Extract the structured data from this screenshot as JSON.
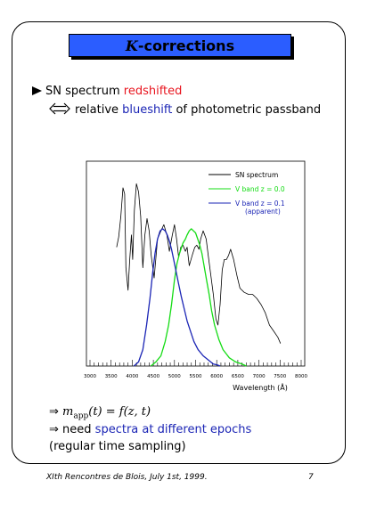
{
  "slide": {
    "title_symbol": "K",
    "title_rest": "-corrections",
    "line1_pre": "SN spectrum ",
    "line1_highlight": "redshifted",
    "line2_pre": "relative ",
    "line2_highlight": "blueshift",
    "line2_post": " of photometric passband",
    "result1_lhs": "m",
    "result1_sub": "app",
    "result1_lhs_args": "(t)",
    "result1_rhs": " = f(z, t)",
    "result2_pre": "need ",
    "result2_highlight": "spectra at different epochs",
    "result3": "(regular time sampling)",
    "footer_left": "XIth Rencontres de Blois, July 1st, 1999.",
    "page_number": "7",
    "colors": {
      "title_bg": "#2b5dff",
      "red": "#e8141e",
      "blue": "#1b25b5",
      "green": "#14dc14"
    }
  },
  "chart_data": {
    "type": "line",
    "xlabel": "Wavelength (Å)",
    "ylabel": "",
    "xlim": [
      3000,
      8000
    ],
    "ylim": [
      0,
      1
    ],
    "xticks": [
      "3000",
      "3500",
      "4000",
      "4500",
      "5000",
      "5500",
      "6000",
      "6500",
      "7000",
      "7500",
      "8000"
    ],
    "legend": [
      {
        "label": "SN spectrum",
        "color": "#000000"
      },
      {
        "label": "V band z = 0.0",
        "color": "#14dc14"
      },
      {
        "label": "V band z = 0.1",
        "color": "#1b25b5"
      },
      {
        "label": "(apparent)",
        "color": "#1b25b5"
      }
    ],
    "series": [
      {
        "name": "SN spectrum",
        "color": "#000000",
        "x": [
          3630,
          3680,
          3730,
          3780,
          3820,
          3850,
          3900,
          3940,
          3980,
          4010,
          4050,
          4100,
          4150,
          4200,
          4250,
          4300,
          4350,
          4400,
          4450,
          4520,
          4600,
          4680,
          4750,
          4820,
          4880,
          4950,
          5000,
          5050,
          5100,
          5150,
          5200,
          5260,
          5300,
          5350,
          5420,
          5480,
          5530,
          5580,
          5620,
          5680,
          5750,
          5800,
          5850,
          5920,
          5980,
          6030,
          6080,
          6130,
          6180,
          6230,
          6280,
          6330,
          6400,
          6480,
          6550,
          6650,
          6750,
          6850,
          6950,
          7050,
          7150,
          7250,
          7350,
          7450,
          7510
        ],
        "y": [
          0.58,
          0.63,
          0.73,
          0.87,
          0.84,
          0.48,
          0.37,
          0.52,
          0.64,
          0.52,
          0.76,
          0.89,
          0.85,
          0.73,
          0.48,
          0.64,
          0.72,
          0.66,
          0.54,
          0.43,
          0.62,
          0.66,
          0.69,
          0.64,
          0.56,
          0.64,
          0.69,
          0.62,
          0.53,
          0.58,
          0.59,
          0.56,
          0.58,
          0.49,
          0.54,
          0.58,
          0.59,
          0.57,
          0.62,
          0.66,
          0.62,
          0.54,
          0.46,
          0.35,
          0.23,
          0.2,
          0.3,
          0.47,
          0.52,
          0.52,
          0.54,
          0.57,
          0.52,
          0.44,
          0.38,
          0.36,
          0.35,
          0.35,
          0.33,
          0.3,
          0.26,
          0.2,
          0.17,
          0.14,
          0.11
        ]
      },
      {
        "name": "V band z = 0.0",
        "color": "#14dc14",
        "x": [
          4440,
          4560,
          4680,
          4780,
          4860,
          4930,
          5000,
          5060,
          5120,
          5200,
          5260,
          5300,
          5350,
          5400,
          5450,
          5500,
          5550,
          5600,
          5650,
          5700,
          5760,
          5820,
          5880,
          5950,
          6050,
          6150,
          6300,
          6450,
          6600,
          6700
        ],
        "y": [
          0.0,
          0.02,
          0.05,
          0.12,
          0.2,
          0.3,
          0.42,
          0.5,
          0.55,
          0.6,
          0.62,
          0.64,
          0.66,
          0.67,
          0.66,
          0.65,
          0.62,
          0.59,
          0.55,
          0.49,
          0.42,
          0.35,
          0.27,
          0.2,
          0.13,
          0.08,
          0.04,
          0.02,
          0.01,
          0.0
        ]
      },
      {
        "name": "V band z = 0.1",
        "color": "#1b25b5",
        "x": [
          4040,
          4150,
          4250,
          4340,
          4420,
          4480,
          4540,
          4600,
          4660,
          4720,
          4780,
          4830,
          4880,
          4930,
          4980,
          5040,
          5100,
          5160,
          5230,
          5300,
          5380,
          5460,
          5560,
          5680,
          5800,
          5920,
          6020,
          6080
        ],
        "y": [
          0.0,
          0.02,
          0.08,
          0.2,
          0.33,
          0.45,
          0.55,
          0.62,
          0.66,
          0.67,
          0.66,
          0.64,
          0.61,
          0.57,
          0.52,
          0.46,
          0.4,
          0.34,
          0.28,
          0.22,
          0.17,
          0.12,
          0.08,
          0.05,
          0.03,
          0.01,
          0.005,
          0.0
        ]
      }
    ]
  }
}
